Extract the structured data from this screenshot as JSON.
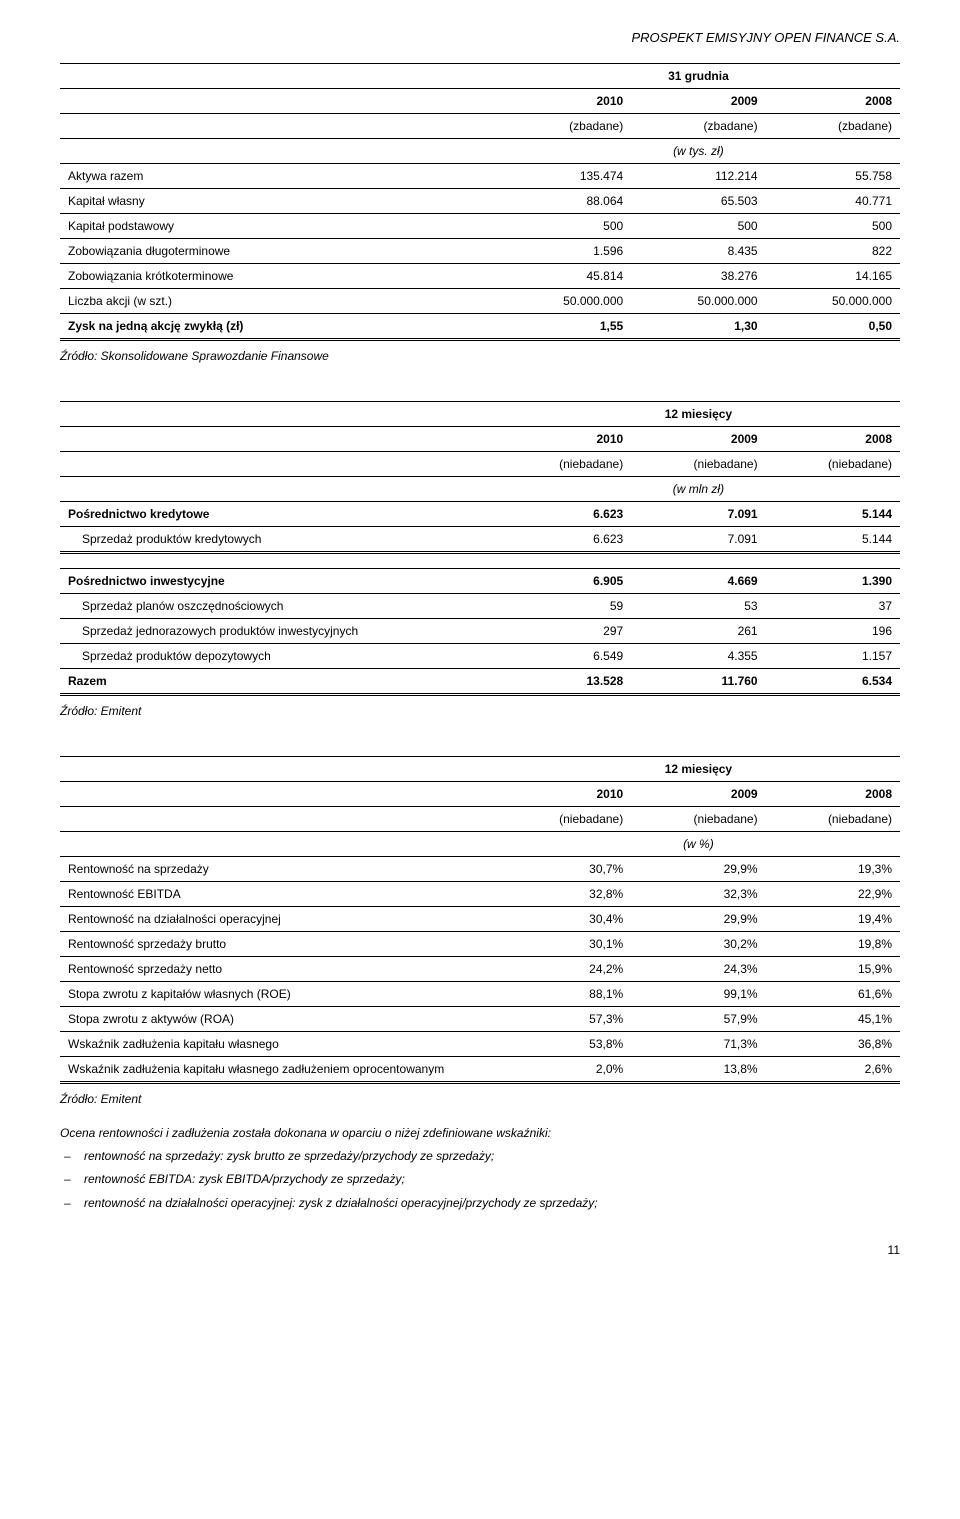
{
  "header": "PROSPEKT EMISYJNY OPEN FINANCE S.A.",
  "page_number": "11",
  "colors": {
    "text": "#000000",
    "background": "#ffffff",
    "border": "#000000"
  },
  "typography": {
    "base_fontsize_pt": 9,
    "header_fontsize_pt": 10,
    "font_family": "Arial"
  },
  "table1": {
    "super_header": "31 grudnia",
    "years": [
      "2010",
      "2009",
      "2008"
    ],
    "audited": [
      "(zbadane)",
      "(zbadane)",
      "(zbadane)"
    ],
    "unit": "(w tys. zł)",
    "rows": [
      {
        "label": "Aktywa razem",
        "v": [
          "135.474",
          "112.214",
          "55.758"
        ]
      },
      {
        "label": "Kapitał własny",
        "v": [
          "88.064",
          "65.503",
          "40.771"
        ]
      },
      {
        "label": "Kapitał podstawowy",
        "v": [
          "500",
          "500",
          "500"
        ]
      },
      {
        "label": "Zobowiązania długoterminowe",
        "v": [
          "1.596",
          "8.435",
          "822"
        ]
      },
      {
        "label": "Zobowiązania krótkoterminowe",
        "v": [
          "45.814",
          "38.276",
          "14.165"
        ]
      },
      {
        "label": "Liczba akcji (w szt.)",
        "v": [
          "50.000.000",
          "50.000.000",
          "50.000.000"
        ]
      }
    ],
    "last_row": {
      "label": "Zysk na jedną akcję zwykłą (zł)",
      "v": [
        "1,55",
        "1,30",
        "0,50"
      ]
    },
    "source": "Źródło: Skonsolidowane Sprawozdanie Finansowe"
  },
  "table2": {
    "super_header": "12 miesięcy",
    "years": [
      "2010",
      "2009",
      "2008"
    ],
    "audited": [
      "(niebadane)",
      "(niebadane)",
      "(niebadane)"
    ],
    "unit": "(w mln zł)",
    "group1_header": {
      "label": "Pośrednictwo kredytowe",
      "v": [
        "6.623",
        "7.091",
        "5.144"
      ]
    },
    "group1_rows": [
      {
        "label": "Sprzedaż produktów kredytowych",
        "v": [
          "6.623",
          "7.091",
          "5.144"
        ]
      }
    ],
    "group2_header": {
      "label": "Pośrednictwo inwestycyjne",
      "v": [
        "6.905",
        "4.669",
        "1.390"
      ]
    },
    "group2_rows": [
      {
        "label": "Sprzedaż planów oszczędnościowych",
        "v": [
          "59",
          "53",
          "37"
        ]
      },
      {
        "label": "Sprzedaż jednorazowych produktów inwestycyjnych",
        "v": [
          "297",
          "261",
          "196"
        ]
      },
      {
        "label": "Sprzedaż produktów depozytowych",
        "v": [
          "6.549",
          "4.355",
          "1.157"
        ]
      }
    ],
    "total": {
      "label": "Razem",
      "v": [
        "13.528",
        "11.760",
        "6.534"
      ]
    },
    "source": "Źródło: Emitent"
  },
  "table3": {
    "super_header": "12 miesięcy",
    "years": [
      "2010",
      "2009",
      "2008"
    ],
    "audited": [
      "(niebadane)",
      "(niebadane)",
      "(niebadane)"
    ],
    "unit": "(w %)",
    "rows": [
      {
        "label": "Rentowność na sprzedaży",
        "v": [
          "30,7%",
          "29,9%",
          "19,3%"
        ]
      },
      {
        "label": "Rentowność EBITDA",
        "v": [
          "32,8%",
          "32,3%",
          "22,9%"
        ]
      },
      {
        "label": "Rentowność na działalności operacyjnej",
        "v": [
          "30,4%",
          "29,9%",
          "19,4%"
        ]
      },
      {
        "label": "Rentowność sprzedaży brutto",
        "v": [
          "30,1%",
          "30,2%",
          "19,8%"
        ]
      },
      {
        "label": "Rentowność sprzedaży netto",
        "v": [
          "24,2%",
          "24,3%",
          "15,9%"
        ]
      },
      {
        "label": "Stopa zwrotu z kapitałów własnych (ROE)",
        "v": [
          "88,1%",
          "99,1%",
          "61,6%"
        ]
      },
      {
        "label": "Stopa zwrotu z aktywów (ROA)",
        "v": [
          "57,3%",
          "57,9%",
          "45,1%"
        ]
      },
      {
        "label": "Wskaźnik zadłużenia kapitału własnego",
        "v": [
          "53,8%",
          "71,3%",
          "36,8%"
        ]
      }
    ],
    "last_row": {
      "label": "Wskaźnik zadłużenia kapitału własnego zadłużeniem oprocentowanym",
      "v": [
        "2,0%",
        "13,8%",
        "2,6%"
      ]
    },
    "source": "Źródło: Emitent"
  },
  "notes": {
    "intro": "Ocena rentowności i zadłużenia została dokonana w oparciu o niżej zdefiniowane wskaźniki:",
    "items": [
      "rentowność na sprzedaży: zysk brutto ze sprzedaży/przychody ze sprzedaży;",
      "rentowność EBITDA: zysk EBITDA/przychody ze sprzedaży;",
      "rentowność na działalności operacyjnej: zysk z działalności operacyjnej/przychody ze sprzedaży;"
    ]
  }
}
